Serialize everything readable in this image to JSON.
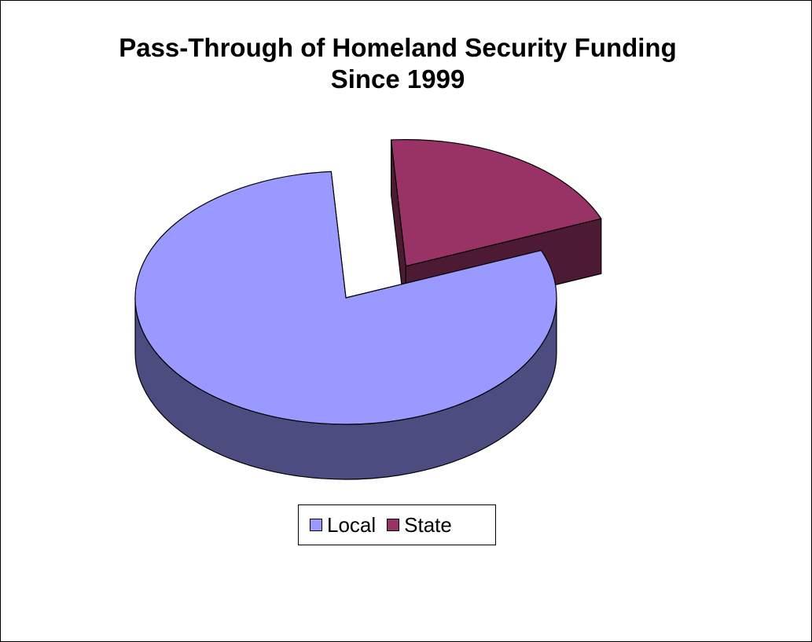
{
  "chart_data": {
    "type": "pie",
    "style": "3d-exploded",
    "title_lines": [
      "Pass-Through of Homeland Security Funding",
      "Since 1999"
    ],
    "categories": [
      "Local",
      "State"
    ],
    "values": [
      80,
      20
    ],
    "unit": "percent",
    "exploded": [
      "State"
    ],
    "legend": {
      "position": "bottom",
      "entries": [
        "Local",
        "State"
      ]
    }
  },
  "colors": {
    "local_top": "#9999FF",
    "local_side": "#4C4C80",
    "state_top": "#993366",
    "state_side": "#4D1A33"
  }
}
